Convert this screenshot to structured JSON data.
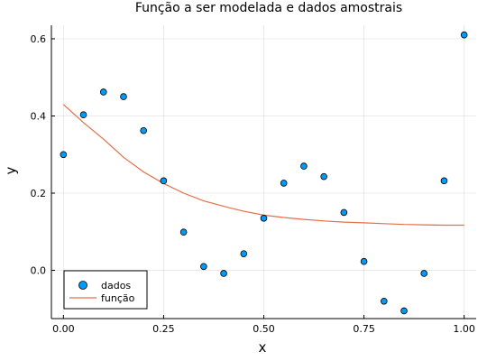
{
  "chart_data": {
    "type": "scatter",
    "title": "Função a ser modelada e dados amostrais",
    "xlabel": "x",
    "ylabel": "y",
    "xlim": [
      -0.03,
      1.03
    ],
    "ylim": [
      -0.125,
      0.635
    ],
    "xticks": [
      0.0,
      0.25,
      0.5,
      0.75,
      1.0
    ],
    "xtick_labels": [
      "0.00",
      "0.25",
      "0.50",
      "0.75",
      "1.00"
    ],
    "yticks": [
      0.0,
      0.2,
      0.4,
      0.6
    ],
    "ytick_labels": [
      "0.0",
      "0.2",
      "0.4",
      "0.6"
    ],
    "grid": true,
    "legend_position": "bottom-left",
    "series": [
      {
        "name": "dados",
        "kind": "scatter",
        "color": "#009af9",
        "x": [
          0.0,
          0.05,
          0.1,
          0.15,
          0.2,
          0.25,
          0.3,
          0.35,
          0.4,
          0.45,
          0.5,
          0.55,
          0.6,
          0.65,
          0.7,
          0.75,
          0.8,
          0.85,
          0.9,
          0.95,
          1.0
        ],
        "y": [
          0.3,
          0.403,
          0.462,
          0.45,
          0.362,
          0.232,
          0.099,
          0.01,
          -0.008,
          0.043,
          0.135,
          0.226,
          0.27,
          0.243,
          0.15,
          0.023,
          -0.08,
          -0.105,
          -0.008,
          0.232,
          0.61
        ]
      },
      {
        "name": "função",
        "kind": "line",
        "color": "#e26f46",
        "x": [
          0.0,
          0.05,
          0.1,
          0.15,
          0.2,
          0.25,
          0.3,
          0.35,
          0.4,
          0.45,
          0.5,
          0.55,
          0.6,
          0.65,
          0.7,
          0.75,
          0.8,
          0.85,
          0.9,
          0.95,
          1.0
        ],
        "y": [
          0.43,
          0.383,
          0.34,
          0.293,
          0.255,
          0.225,
          0.2,
          0.18,
          0.166,
          0.153,
          0.143,
          0.137,
          0.132,
          0.128,
          0.125,
          0.123,
          0.121,
          0.119,
          0.118,
          0.117,
          0.117
        ]
      }
    ]
  }
}
